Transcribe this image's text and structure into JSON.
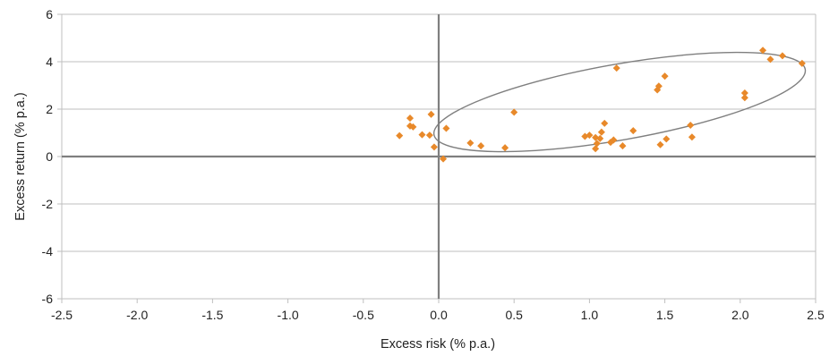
{
  "chart_data": {
    "type": "scatter",
    "title": "",
    "xlabel": "Excess risk (% p.a.)",
    "ylabel": "Excess return (% p.a.)",
    "xlim": [
      -2.5,
      2.5
    ],
    "ylim": [
      -6,
      6
    ],
    "x_ticks": [
      -2.5,
      -2.0,
      -1.5,
      -1.0,
      -0.5,
      0.0,
      0.5,
      1.0,
      1.5,
      2.0,
      2.5
    ],
    "x_tick_labels": [
      "-2.5",
      "-2.0",
      "-1.5",
      "-1.0",
      "-0.5",
      "0.0",
      "0.5",
      "1.0",
      "1.5",
      "2.0",
      "2.5"
    ],
    "y_ticks": [
      -6,
      -4,
      -2,
      0,
      2,
      4,
      6
    ],
    "y_tick_labels": [
      "-6",
      "-4",
      "-2",
      "0",
      "2",
      "4",
      "6"
    ],
    "grid": true,
    "legend": "none",
    "colors": {
      "marker": "#E8892A",
      "grid": "#BFBFBF",
      "zero_line": "#7F7F7F",
      "ellipse": "#7F7F7F"
    },
    "ellipse": {
      "center": [
        1.2,
        2.3
      ],
      "rx": 1.25,
      "ry": 1.6,
      "rotation_deg": -10
    },
    "series": [
      {
        "marker": "diamond",
        "points": [
          [
            -0.26,
            0.88
          ],
          [
            -0.19,
            1.62
          ],
          [
            -0.19,
            1.29
          ],
          [
            -0.17,
            1.25
          ],
          [
            -0.11,
            0.92
          ],
          [
            -0.06,
            0.9
          ],
          [
            -0.05,
            1.78
          ],
          [
            -0.03,
            0.4
          ],
          [
            0.03,
            -0.1
          ],
          [
            0.05,
            1.19
          ],
          [
            0.21,
            0.57
          ],
          [
            0.28,
            0.45
          ],
          [
            0.44,
            0.37
          ],
          [
            0.5,
            1.87
          ],
          [
            0.97,
            0.85
          ],
          [
            1.0,
            0.9
          ],
          [
            1.04,
            0.33
          ],
          [
            1.04,
            0.8
          ],
          [
            1.05,
            0.55
          ],
          [
            1.07,
            0.76
          ],
          [
            1.08,
            1.03
          ],
          [
            1.1,
            1.4
          ],
          [
            1.14,
            0.6
          ],
          [
            1.16,
            0.7
          ],
          [
            1.18,
            3.73
          ],
          [
            1.22,
            0.45
          ],
          [
            1.29,
            1.09
          ],
          [
            1.45,
            2.81
          ],
          [
            1.46,
            2.97
          ],
          [
            1.47,
            0.5
          ],
          [
            1.5,
            3.39
          ],
          [
            1.51,
            0.74
          ],
          [
            1.67,
            1.32
          ],
          [
            1.68,
            0.82
          ],
          [
            2.03,
            2.68
          ],
          [
            2.03,
            2.48
          ],
          [
            2.15,
            4.48
          ],
          [
            2.2,
            4.1
          ],
          [
            2.28,
            4.25
          ],
          [
            2.41,
            3.93
          ]
        ]
      }
    ]
  }
}
